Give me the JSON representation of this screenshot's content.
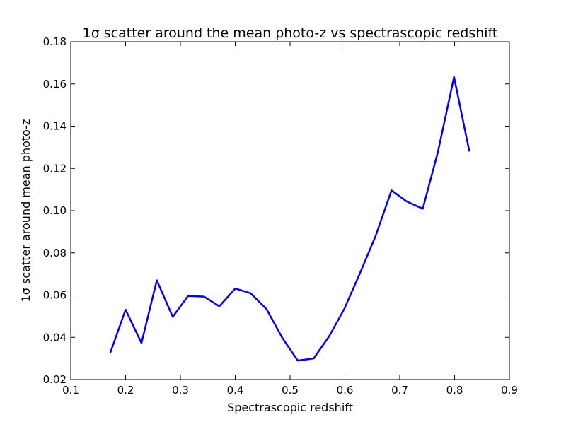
{
  "chart_data": {
    "type": "line",
    "title": "1σ scatter around the mean photo-z vs spectrascopic redshift",
    "xlabel": "Spectrascopic redshift",
    "ylabel": "1σ scatter around mean photo-z",
    "xlim": [
      0.1,
      0.9
    ],
    "ylim": [
      0.02,
      0.18
    ],
    "xticks": [
      "0.1",
      "0.2",
      "0.3",
      "0.4",
      "0.5",
      "0.6",
      "0.7",
      "0.8",
      "0.9"
    ],
    "yticks": [
      "0.02",
      "0.04",
      "0.06",
      "0.08",
      "0.10",
      "0.12",
      "0.14",
      "0.16",
      "0.18"
    ],
    "grid": false,
    "series": [
      {
        "color": "#0000ff",
        "x": [
          0.172,
          0.2,
          0.229,
          0.257,
          0.286,
          0.314,
          0.343,
          0.371,
          0.4,
          0.428,
          0.457,
          0.486,
          0.514,
          0.543,
          0.571,
          0.599,
          0.628,
          0.656,
          0.685,
          0.713,
          0.742,
          0.77,
          0.799,
          0.827
        ],
        "y": [
          0.0326,
          0.0531,
          0.0373,
          0.067,
          0.0497,
          0.0596,
          0.0593,
          0.0547,
          0.0631,
          0.0609,
          0.0534,
          0.0397,
          0.029,
          0.03,
          0.0404,
          0.0535,
          0.0707,
          0.088,
          0.1096,
          0.1043,
          0.1009,
          0.1282,
          0.1633,
          0.128
        ]
      }
    ]
  }
}
